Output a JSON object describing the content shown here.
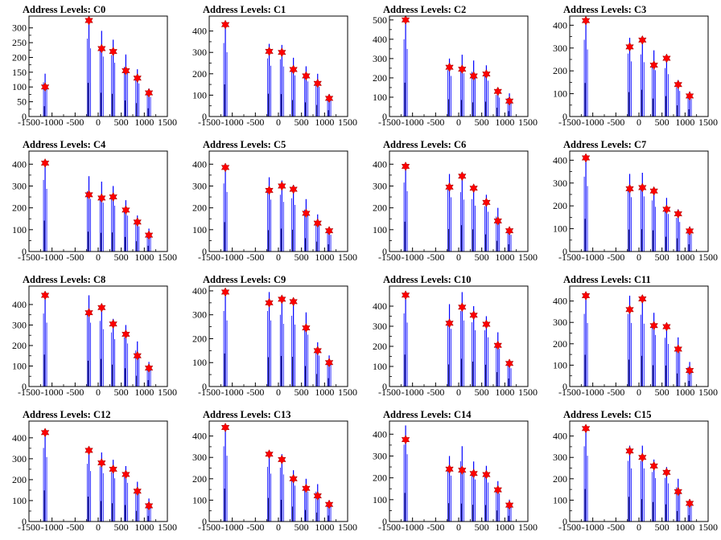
{
  "colors": {
    "bar": "#0000ff",
    "peak_bar": "#000000",
    "marker": "#ff0000",
    "frame": "#000000"
  },
  "chart_data": [
    {
      "type": "bar",
      "title": "Address Levels: C0",
      "xlim": [
        -1500,
        1500
      ],
      "xticks": [
        -1500,
        -1000,
        -500,
        0,
        500,
        1000,
        1500
      ],
      "ylim": [
        0,
        340
      ],
      "yticks": [
        0,
        50,
        100,
        150,
        200,
        250,
        300
      ],
      "x": [
        -1150,
        -200,
        75,
        325,
        600,
        850,
        1100
      ],
      "values": [
        145,
        330,
        290,
        260,
        210,
        160,
        95
      ],
      "markers": [
        100,
        325,
        230,
        220,
        155,
        130,
        80
      ]
    },
    {
      "type": "bar",
      "title": "Address Levels: C1",
      "xlim": [
        -1500,
        1500
      ],
      "xticks": [
        -1500,
        -1000,
        -500,
        0,
        500,
        1000,
        1500
      ],
      "ylim": [
        0,
        470
      ],
      "yticks": [
        0,
        100,
        200,
        300,
        400
      ],
      "x": [
        -1150,
        -200,
        75,
        325,
        600,
        850,
        1100
      ],
      "values": [
        430,
        340,
        335,
        275,
        235,
        200,
        105
      ],
      "markers": [
        430,
        305,
        300,
        220,
        190,
        155,
        85
      ]
    },
    {
      "type": "bar",
      "title": "Address Levels: C2",
      "xlim": [
        -1500,
        1500
      ],
      "xticks": [
        -1500,
        -1000,
        -500,
        0,
        500,
        1000,
        1500
      ],
      "ylim": [
        0,
        520
      ],
      "yticks": [
        0,
        100,
        200,
        300,
        400,
        500
      ],
      "x": [
        -1150,
        -200,
        75,
        325,
        600,
        850,
        1100
      ],
      "values": [
        500,
        300,
        320,
        290,
        265,
        140,
        120
      ],
      "markers": [
        500,
        255,
        245,
        210,
        220,
        130,
        80
      ]
    },
    {
      "type": "bar",
      "title": "Address Levels: C3",
      "xlim": [
        -1500,
        1500
      ],
      "xticks": [
        -1500,
        -1000,
        -500,
        0,
        500,
        1000,
        1500
      ],
      "ylim": [
        0,
        440
      ],
      "yticks": [
        0,
        100,
        200,
        300,
        400
      ],
      "x": [
        -1150,
        -200,
        75,
        325,
        600,
        850,
        1100
      ],
      "values": [
        420,
        345,
        340,
        290,
        265,
        160,
        110
      ],
      "markers": [
        420,
        305,
        335,
        225,
        255,
        140,
        90
      ]
    },
    {
      "type": "bar",
      "title": "Address Levels: C4",
      "xlim": [
        -1500,
        1500
      ],
      "xticks": [
        -1500,
        -1000,
        -500,
        0,
        500,
        1000,
        1500
      ],
      "ylim": [
        0,
        460
      ],
      "yticks": [
        0,
        100,
        200,
        300,
        400
      ],
      "x": [
        -1150,
        -200,
        75,
        325,
        600,
        850,
        1100
      ],
      "values": [
        410,
        345,
        320,
        300,
        235,
        165,
        105
      ],
      "markers": [
        405,
        260,
        245,
        250,
        190,
        135,
        75
      ]
    },
    {
      "type": "bar",
      "title": "Address Levels: C5",
      "xlim": [
        -1500,
        1500
      ],
      "xticks": [
        -1500,
        -1000,
        -500,
        0,
        500,
        1000,
        1500
      ],
      "ylim": [
        0,
        460
      ],
      "yticks": [
        0,
        100,
        200,
        300,
        400
      ],
      "x": [
        -1150,
        -200,
        75,
        325,
        600,
        850,
        1100
      ],
      "values": [
        390,
        340,
        325,
        305,
        240,
        170,
        110
      ],
      "markers": [
        385,
        280,
        300,
        285,
        175,
        130,
        95
      ]
    },
    {
      "type": "bar",
      "title": "Address Levels: C6",
      "xlim": [
        -1500,
        1500
      ],
      "xticks": [
        -1500,
        -1000,
        -500,
        0,
        500,
        1000,
        1500
      ],
      "ylim": [
        0,
        460
      ],
      "yticks": [
        0,
        100,
        200,
        300,
        400
      ],
      "x": [
        -1150,
        -200,
        75,
        325,
        600,
        850,
        1100
      ],
      "values": [
        395,
        355,
        340,
        300,
        260,
        200,
        110
      ],
      "markers": [
        390,
        295,
        345,
        290,
        225,
        140,
        95
      ]
    },
    {
      "type": "bar",
      "title": "Address Levels: C7",
      "xlim": [
        -1500,
        1500
      ],
      "xticks": [
        -1500,
        -1000,
        -500,
        0,
        500,
        1000,
        1500
      ],
      "ylim": [
        0,
        440
      ],
      "yticks": [
        0,
        100,
        200,
        300,
        400
      ],
      "x": [
        -1150,
        -200,
        75,
        325,
        600,
        850,
        1100
      ],
      "values": [
        410,
        340,
        345,
        280,
        235,
        185,
        110
      ],
      "markers": [
        410,
        275,
        280,
        265,
        185,
        165,
        90
      ]
    },
    {
      "type": "bar",
      "title": "Address Levels: C8",
      "xlim": [
        -1500,
        1500
      ],
      "xticks": [
        -1500,
        -1000,
        -500,
        0,
        500,
        1000,
        1500
      ],
      "ylim": [
        0,
        490
      ],
      "yticks": [
        0,
        100,
        200,
        300,
        400
      ],
      "x": [
        -1150,
        -200,
        75,
        325,
        600,
        850,
        1100
      ],
      "values": [
        445,
        445,
        400,
        330,
        300,
        220,
        120
      ],
      "markers": [
        445,
        360,
        385,
        305,
        255,
        150,
        90
      ]
    },
    {
      "type": "bar",
      "title": "Address Levels: C9",
      "xlim": [
        -1500,
        1500
      ],
      "xticks": [
        -1500,
        -1000,
        -500,
        0,
        500,
        1000,
        1500
      ],
      "ylim": [
        0,
        420
      ],
      "yticks": [
        0,
        100,
        200,
        300,
        400
      ],
      "x": [
        -1150,
        -200,
        75,
        325,
        600,
        850,
        1100
      ],
      "values": [
        395,
        395,
        375,
        370,
        310,
        185,
        130
      ],
      "markers": [
        395,
        350,
        365,
        355,
        245,
        150,
        100
      ]
    },
    {
      "type": "bar",
      "title": "Address Levels: C10",
      "xlim": [
        -1500,
        1500
      ],
      "xticks": [
        -1500,
        -1000,
        -500,
        0,
        500,
        1000,
        1500
      ],
      "ylim": [
        0,
        500
      ],
      "yticks": [
        0,
        100,
        200,
        300,
        400
      ],
      "x": [
        -1150,
        -200,
        75,
        325,
        600,
        850,
        1100
      ],
      "values": [
        455,
        410,
        470,
        400,
        350,
        270,
        130
      ],
      "markers": [
        455,
        315,
        395,
        355,
        310,
        205,
        115
      ]
    },
    {
      "type": "bar",
      "title": "Address Levels: C11",
      "xlim": [
        -1500,
        1500
      ],
      "xticks": [
        -1500,
        -1000,
        -500,
        0,
        500,
        1000,
        1500
      ],
      "ylim": [
        0,
        470
      ],
      "yticks": [
        0,
        100,
        200,
        300,
        400
      ],
      "x": [
        -1150,
        -200,
        75,
        325,
        600,
        850,
        1100
      ],
      "values": [
        425,
        425,
        420,
        345,
        285,
        230,
        115
      ],
      "markers": [
        425,
        360,
        410,
        285,
        280,
        175,
        75
      ]
    },
    {
      "type": "bar",
      "title": "Address Levels: C12",
      "xlim": [
        -1500,
        1500
      ],
      "xticks": [
        -1500,
        -1000,
        -500,
        0,
        500,
        1000,
        1500
      ],
      "ylim": [
        0,
        480
      ],
      "yticks": [
        0,
        100,
        200,
        300,
        400
      ],
      "x": [
        -1150,
        -200,
        75,
        325,
        600,
        850,
        1100
      ],
      "values": [
        440,
        345,
        330,
        295,
        265,
        190,
        110
      ],
      "markers": [
        425,
        340,
        280,
        250,
        225,
        145,
        75
      ]
    },
    {
      "type": "bar",
      "title": "Address Levels: C13",
      "xlim": [
        -1500,
        1500
      ],
      "xticks": [
        -1500,
        -1000,
        -500,
        0,
        500,
        1000,
        1500
      ],
      "ylim": [
        0,
        470
      ],
      "yticks": [
        0,
        100,
        200,
        300,
        400
      ],
      "x": [
        -1150,
        -200,
        75,
        325,
        600,
        850,
        1100
      ],
      "values": [
        440,
        320,
        315,
        240,
        200,
        175,
        100
      ],
      "markers": [
        440,
        315,
        290,
        200,
        155,
        120,
        80
      ]
    },
    {
      "type": "bar",
      "title": "Address Levels: C14",
      "xlim": [
        -1500,
        1500
      ],
      "xticks": [
        -1500,
        -1000,
        -500,
        0,
        500,
        1000,
        1500
      ],
      "ylim": [
        0,
        460
      ],
      "yticks": [
        0,
        100,
        200,
        300,
        400
      ],
      "x": [
        -1150,
        -200,
        75,
        325,
        600,
        850,
        1100
      ],
      "values": [
        440,
        300,
        345,
        275,
        255,
        185,
        100
      ],
      "markers": [
        375,
        240,
        235,
        220,
        215,
        145,
        75
      ]
    },
    {
      "type": "bar",
      "title": "Address Levels: C15",
      "xlim": [
        -1500,
        1500
      ],
      "xticks": [
        -1500,
        -1000,
        -500,
        0,
        500,
        1000,
        1500
      ],
      "ylim": [
        0,
        470
      ],
      "yticks": [
        0,
        100,
        200,
        300,
        400
      ],
      "x": [
        -1150,
        -200,
        75,
        325,
        600,
        850,
        1100
      ],
      "values": [
        440,
        355,
        355,
        290,
        255,
        200,
        105
      ],
      "markers": [
        435,
        330,
        300,
        260,
        230,
        140,
        85
      ]
    }
  ]
}
